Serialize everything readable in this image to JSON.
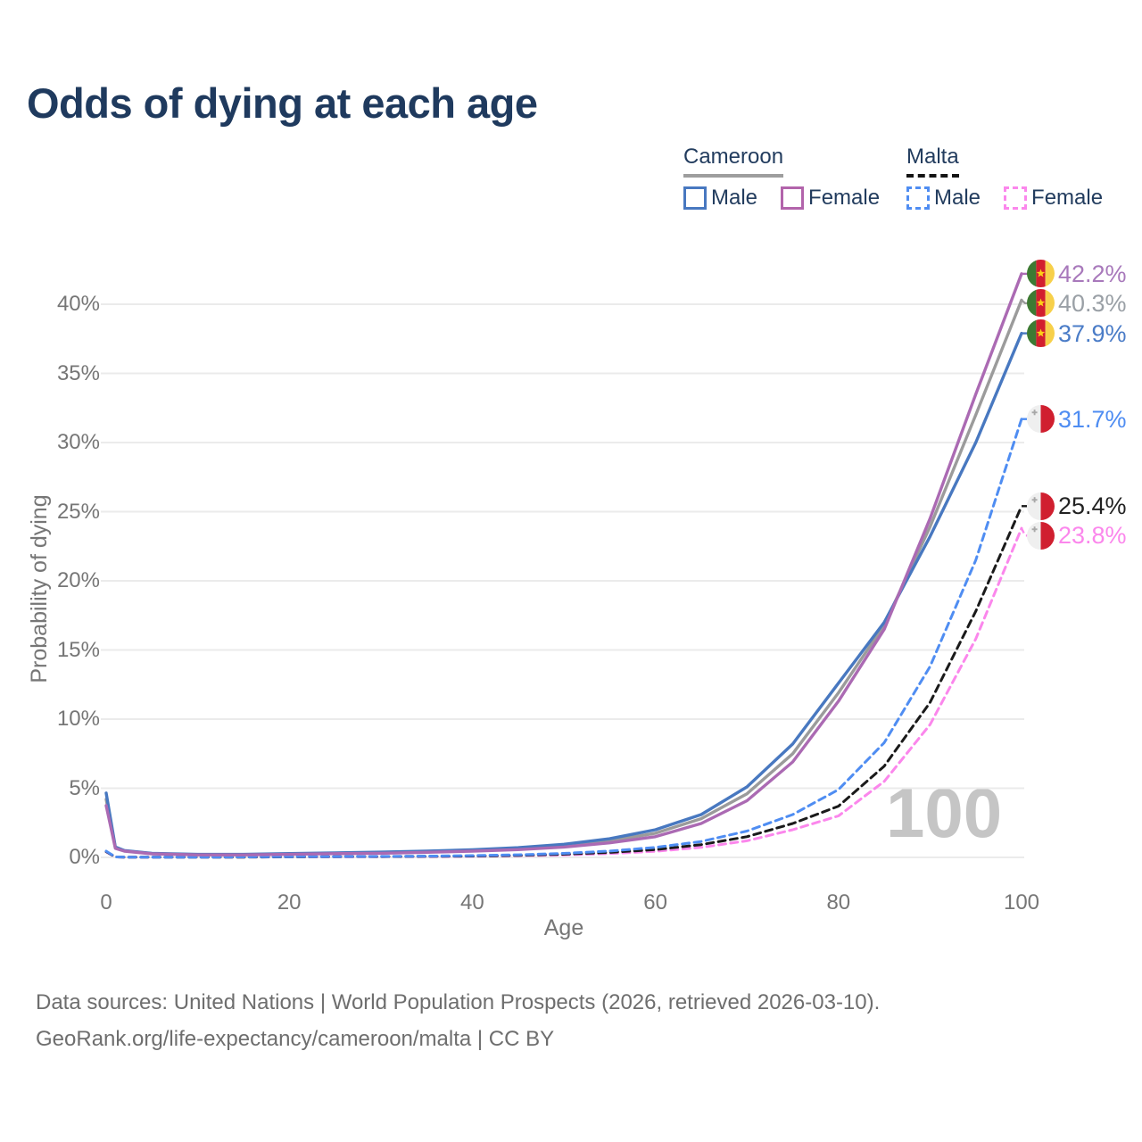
{
  "title": "Odds of dying at each age",
  "legend": {
    "groups": [
      {
        "country": "Cameroon",
        "line_style": "solid",
        "underline_color": "#9e9e9e",
        "items": [
          {
            "label": "Male",
            "color": "#4878c0"
          },
          {
            "label": "Female",
            "color": "#b264ab"
          }
        ]
      },
      {
        "country": "Malta",
        "line_style": "dashed",
        "underline_color": "#141414",
        "items": [
          {
            "label": "Male",
            "color": "#4f8df2"
          },
          {
            "label": "Female",
            "color": "#fb87ec"
          }
        ]
      }
    ]
  },
  "chart_data": {
    "type": "line",
    "title": "Odds of dying at each age",
    "xlabel": "Age",
    "ylabel": "Probability of dying",
    "x_ticks": [
      "0",
      "20",
      "40",
      "60",
      "80",
      "100"
    ],
    "y_ticks": [
      "0%",
      "5%",
      "10%",
      "15%",
      "20%",
      "25%",
      "30%",
      "35%",
      "40%"
    ],
    "xlim": [
      0,
      100
    ],
    "ylim_percent": [
      0,
      43
    ],
    "grid": "horizontal-only",
    "legend_position": "top-right",
    "watermark": "100",
    "ages": [
      0,
      1,
      2,
      5,
      10,
      15,
      20,
      25,
      30,
      35,
      40,
      45,
      50,
      55,
      60,
      65,
      70,
      75,
      80,
      85,
      90,
      95,
      100
    ],
    "series": [
      {
        "id": "cameroon-female",
        "name": "Cameroon Female",
        "country": "Cameroon",
        "sex": "Female",
        "color": "#ab6ab3",
        "label_color": "#a879bb",
        "dashed": false,
        "flag": "cameroon",
        "end_label": "42.2%",
        "end_value_percent": 42.2,
        "values_percent": [
          3.75,
          0.65,
          0.45,
          0.26,
          0.18,
          0.18,
          0.22,
          0.27,
          0.3,
          0.37,
          0.45,
          0.56,
          0.75,
          1.05,
          1.5,
          2.45,
          4.1,
          6.9,
          11.3,
          16.5,
          24.5,
          33.5,
          42.2
        ]
      },
      {
        "id": "cameroon-both",
        "name": "Cameroon Both sexes",
        "country": "Cameroon",
        "sex": "Both",
        "color": "#9b9b9b",
        "label_color": "#9aa0a6",
        "dashed": false,
        "flag": "cameroon",
        "end_label": "40.3%",
        "end_value_percent": 40.3,
        "values_percent": [
          4.2,
          0.7,
          0.48,
          0.28,
          0.2,
          0.2,
          0.25,
          0.3,
          0.34,
          0.41,
          0.5,
          0.63,
          0.85,
          1.2,
          1.75,
          2.8,
          4.6,
          7.5,
          11.9,
          16.8,
          23.9,
          32.0,
          40.3
        ]
      },
      {
        "id": "cameroon-male",
        "name": "Cameroon Male",
        "country": "Cameroon",
        "sex": "Male",
        "color": "#4878c0",
        "label_color": "#4a7cc7",
        "dashed": false,
        "flag": "cameroon",
        "end_label": "37.9%",
        "end_value_percent": 37.9,
        "values_percent": [
          4.65,
          0.75,
          0.5,
          0.3,
          0.22,
          0.22,
          0.28,
          0.33,
          0.38,
          0.45,
          0.55,
          0.7,
          0.95,
          1.35,
          2.0,
          3.1,
          5.1,
          8.2,
          12.6,
          17.0,
          23.2,
          30.0,
          37.9
        ]
      },
      {
        "id": "malta-male",
        "name": "Malta Male",
        "country": "Malta",
        "sex": "Male",
        "color": "#4f8df2",
        "label_color": "#4f8df2",
        "dashed": true,
        "flag": "malta",
        "end_label": "31.7%",
        "end_value_percent": 31.7,
        "values_percent": [
          0.45,
          0.04,
          0.02,
          0.01,
          0.01,
          0.03,
          0.05,
          0.06,
          0.07,
          0.09,
          0.13,
          0.19,
          0.29,
          0.46,
          0.72,
          1.15,
          1.9,
          3.1,
          4.9,
          8.3,
          13.8,
          21.5,
          31.7
        ]
      },
      {
        "id": "malta-both",
        "name": "Malta Both sexes",
        "country": "Malta",
        "sex": "Both",
        "color": "#1a1a1a",
        "label_color": "#222222",
        "dashed": true,
        "flag": "malta",
        "end_label": "25.4%",
        "end_value_percent": 25.4,
        "values_percent": [
          0.42,
          0.035,
          0.02,
          0.01,
          0.01,
          0.02,
          0.04,
          0.05,
          0.06,
          0.08,
          0.1,
          0.15,
          0.23,
          0.36,
          0.56,
          0.92,
          1.5,
          2.45,
          3.7,
          6.6,
          11.2,
          17.8,
          25.4
        ]
      },
      {
        "id": "malta-female",
        "name": "Malta Female",
        "country": "Malta",
        "sex": "Female",
        "color": "#fb87ec",
        "label_color": "#fb87ec",
        "dashed": true,
        "flag": "malta",
        "end_label": "23.8%",
        "end_value_percent": 23.8,
        "values_percent": [
          0.4,
          0.03,
          0.015,
          0.01,
          0.01,
          0.02,
          0.03,
          0.04,
          0.05,
          0.06,
          0.08,
          0.12,
          0.18,
          0.28,
          0.44,
          0.72,
          1.2,
          2.0,
          3.0,
          5.5,
          9.6,
          15.8,
          23.8
        ]
      }
    ],
    "draw_order": [
      "malta-female",
      "malta-both",
      "malta-male",
      "cameroon-both",
      "cameroon-male",
      "cameroon-female"
    ]
  },
  "footer": {
    "line1": "Data sources: United Nations | World Population Prospects (2026, retrieved 2026-03-10).",
    "line2": "GeoRank.org/life-expectancy/cameroon/malta | CC BY"
  }
}
